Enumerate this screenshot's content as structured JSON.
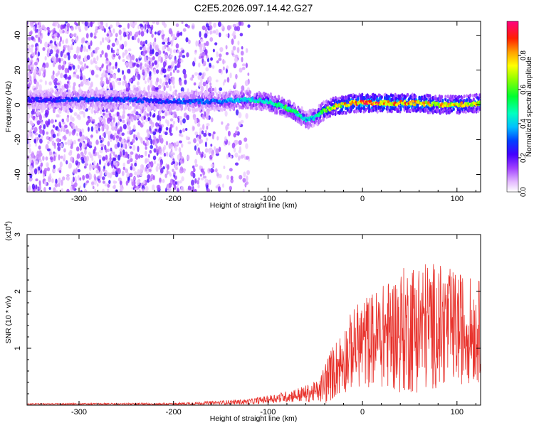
{
  "chart_data": [
    {
      "type": "heatmap",
      "title": "C2E5.2026.097.14.42.G27",
      "xlabel": "Height of straight line (km)",
      "ylabel": "Frequency (Hz)",
      "xlim": [
        -355,
        125
      ],
      "ylim": [
        -50,
        48
      ],
      "x_ticks": [
        -300,
        -200,
        -100,
        0,
        100
      ],
      "y_ticks": [
        -40,
        -20,
        0,
        20,
        40
      ],
      "colorbar": {
        "label": "Normalized spectral amplitude",
        "range": [
          0.0,
          1.0
        ],
        "ticks": [
          0.0,
          0.2,
          0.4,
          0.6,
          0.8
        ],
        "tick_labels": [
          "0.0",
          "0.2",
          "0.4",
          "0.6",
          "0.8"
        ]
      },
      "ridge": {
        "description_points_x": [
          -355,
          -300,
          -250,
          -200,
          -150,
          -120,
          -100,
          -80,
          -65,
          -60,
          -50,
          -45,
          -40,
          -30,
          -20,
          -10,
          0,
          20,
          40,
          60,
          80,
          100,
          125
        ],
        "frequency_hz": [
          3,
          3,
          3,
          2,
          2,
          3,
          2,
          -2,
          -6,
          -9,
          -7,
          -5,
          -3,
          -1,
          0,
          1,
          1,
          1,
          1,
          1,
          0,
          0,
          1
        ],
        "peak_amplitude": [
          0.25,
          0.3,
          0.3,
          0.3,
          0.35,
          0.45,
          0.5,
          0.55,
          0.5,
          0.4,
          0.45,
          0.55,
          0.65,
          0.75,
          0.8,
          0.85,
          0.9,
          0.9,
          0.85,
          0.85,
          0.8,
          0.8,
          0.75
        ]
      },
      "noise_scatter_region_x": [
        -355,
        -140
      ]
    },
    {
      "type": "line",
      "title": "",
      "xlabel": "Height of straight line (km)",
      "ylabel": "SNR (10 * v/v)",
      "y_multiplier": "(x10^4)",
      "y_multiplier_base": "(x10",
      "y_multiplier_exp": "4",
      "y_multiplier_close": ")",
      "xlim": [
        -355,
        125
      ],
      "ylim": [
        0,
        3
      ],
      "x_ticks": [
        -300,
        -200,
        -100,
        0,
        100
      ],
      "y_ticks": [
        1,
        2,
        3
      ],
      "series": [
        {
          "name": "SNR",
          "color": "#e8322c",
          "envelope_x": [
            -355,
            -200,
            -160,
            -120,
            -100,
            -80,
            -60,
            -45,
            -40,
            -30,
            -20,
            -10,
            0,
            20,
            40,
            60,
            80,
            100,
            125
          ],
          "envelope_mean": [
            0.02,
            0.02,
            0.04,
            0.06,
            0.1,
            0.15,
            0.2,
            0.25,
            0.4,
            0.6,
            0.8,
            1.0,
            1.1,
            1.2,
            1.3,
            1.4,
            1.4,
            1.35,
            1.3
          ],
          "envelope_amplitude": [
            0.01,
            0.02,
            0.03,
            0.05,
            0.07,
            0.1,
            0.15,
            0.2,
            0.4,
            0.5,
            0.6,
            0.7,
            0.8,
            0.9,
            1.1,
            1.2,
            1.1,
            1.0,
            0.9
          ]
        }
      ]
    }
  ]
}
